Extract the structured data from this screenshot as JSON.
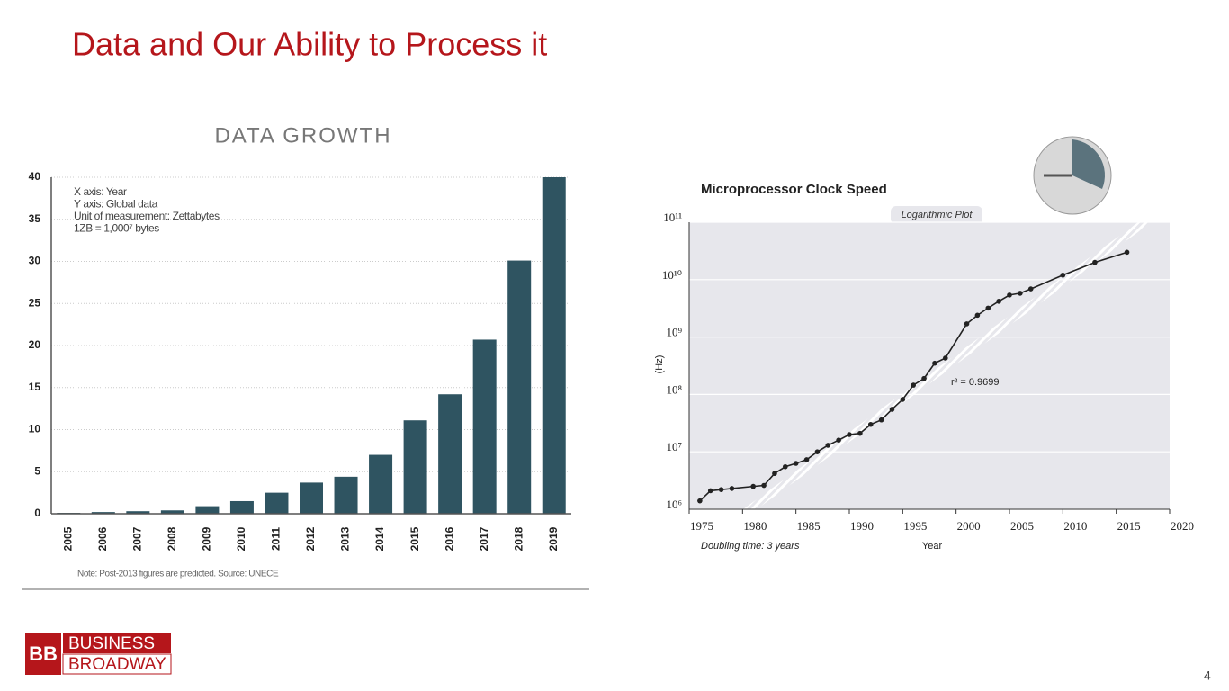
{
  "title": "Data and Our Ability to Process it",
  "page_number": "4",
  "logo": {
    "mark": "BB",
    "lines": [
      "BUSINESS",
      "BROADWAY"
    ]
  },
  "chart_data": [
    {
      "type": "bar",
      "title": "DATA GROWTH",
      "categories": [
        "2005",
        "2006",
        "2007",
        "2008",
        "2009",
        "2010",
        "2011",
        "2012",
        "2013",
        "2014",
        "2015",
        "2016",
        "2017",
        "2018",
        "2019"
      ],
      "values": [
        0.1,
        0.2,
        0.3,
        0.4,
        0.9,
        1.5,
        2.5,
        3.7,
        4.4,
        7,
        11.1,
        14.2,
        20.7,
        30.1,
        40
      ],
      "color": "#2f5461",
      "ylim": [
        0,
        40
      ],
      "yticks": [
        0,
        5,
        10,
        15,
        20,
        25,
        30,
        35,
        40
      ],
      "grid": true,
      "annotations": [
        "X axis: Year",
        "Y axis: Global data",
        "Unit of measurement: Zettabytes",
        "1ZB = 1,000⁷ bytes"
      ],
      "note": "Note: Post-2013 figures are predicted. Source: UNECE"
    },
    {
      "type": "line",
      "title": "Microprocessor Clock Speed",
      "subtitle": "Logarithmic Plot",
      "x_label": "Year",
      "y_label": "(Hz)",
      "annotations": [
        "Doubling time: 3 years",
        "r² = 0.9699"
      ],
      "x": [
        1976,
        1977,
        1978,
        1979,
        1981,
        1982,
        1983,
        1984,
        1985,
        1986,
        1987,
        1988,
        1989,
        1990,
        1991,
        1992,
        1993,
        1994,
        1995,
        1996,
        1997,
        1998,
        1999,
        2001,
        2002,
        2003,
        2004,
        2005,
        2006,
        2007,
        2010,
        2013,
        2016
      ],
      "values": [
        1400000,
        2100000,
        2200000,
        2300000,
        2500000,
        2600000,
        4200000,
        5500000,
        6300000,
        7300000,
        10000000,
        13000000,
        16000000,
        20000000,
        21000000,
        30000000,
        36000000,
        55000000,
        82000000,
        145000000,
        190000000,
        350000000,
        430000000,
        1700000000,
        2400000000,
        3200000000,
        4200000000,
        5400000000,
        5800000000,
        6900000000,
        12000000000,
        20000000000,
        30000000000
      ],
      "color": "#222222",
      "log_scale": true,
      "grid": true,
      "xlim": [
        1975,
        2020
      ],
      "xticks": [
        1975,
        1980,
        1985,
        1990,
        1995,
        2000,
        2005,
        2010,
        2015,
        2020
      ],
      "ylim": [
        1000000,
        100000000000
      ],
      "yticks": [
        {
          "value": 1000000,
          "label": "10⁶"
        },
        {
          "value": 10000000,
          "label": "10⁷"
        },
        {
          "value": 100000000,
          "label": "10⁸"
        },
        {
          "value": 1000000000,
          "label": "10⁹"
        },
        {
          "value": 10000000000,
          "label": "10¹⁰"
        },
        {
          "value": 100000000000,
          "label": "10¹¹"
        }
      ]
    }
  ]
}
